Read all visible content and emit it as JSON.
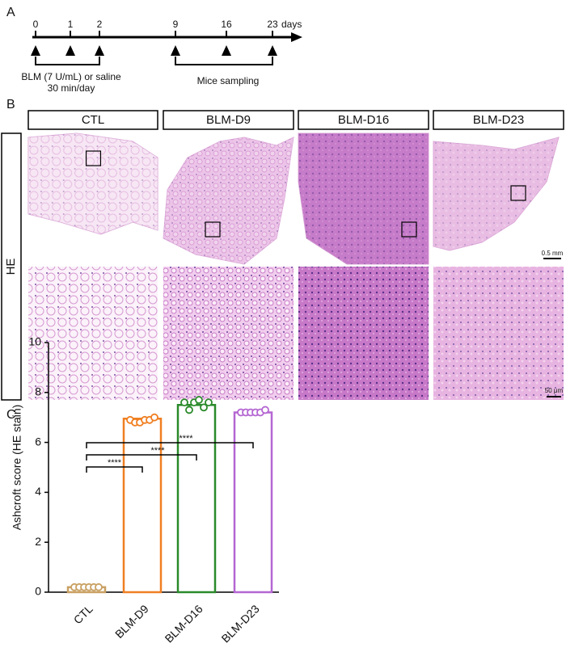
{
  "panel_a": {
    "label": "A",
    "days": [
      0,
      1,
      2,
      9,
      16,
      23
    ],
    "unit": "days",
    "treatment": "BLM (7 U/mL) or saline",
    "treatment_schedule": "30 min/day",
    "sampling": "Mice sampling"
  },
  "panel_b": {
    "label": "B",
    "groups": [
      "CTL",
      "BLM-D9",
      "BLM-D16",
      "BLM-D23"
    ],
    "stain": "HE",
    "scale_low": "0.5 mm",
    "scale_high": "50 μm"
  },
  "panel_c": {
    "label": "C"
  },
  "chart_data": {
    "type": "bar",
    "ylabel": "Ashcroft score (HE stain)",
    "categories": [
      "CTL",
      "BLM-D9",
      "BLM-D16",
      "BLM-D23"
    ],
    "values": [
      0.2,
      6.95,
      7.5,
      7.2
    ],
    "colors": [
      "#c9a062",
      "#f07f22",
      "#2a8a2a",
      "#b466d2"
    ],
    "points": [
      [
        0.2,
        0.2,
        0.2,
        0.2,
        0.2,
        0.2
      ],
      [
        6.9,
        6.8,
        6.8,
        6.9,
        6.9,
        7.0
      ],
      [
        7.6,
        7.3,
        7.6,
        7.7,
        7.4,
        7.6
      ],
      [
        7.2,
        7.2,
        7.2,
        7.2,
        7.2,
        7.3
      ]
    ],
    "significance": [
      "****",
      "****",
      "****"
    ],
    "ylim": [
      0,
      10
    ],
    "yticks": [
      0,
      2,
      4,
      6,
      8,
      10
    ]
  }
}
